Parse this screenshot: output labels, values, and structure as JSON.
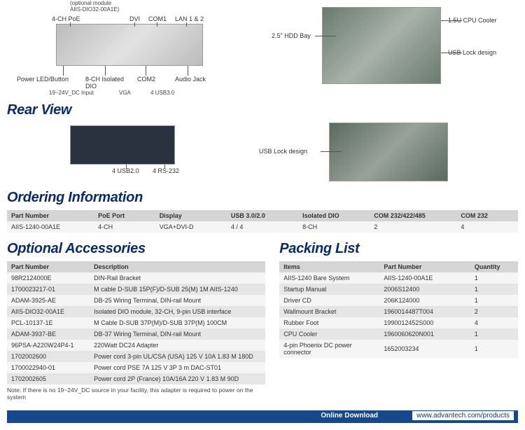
{
  "frontPanel": {
    "labels": {
      "optModule": "(optional module\nAIIS-DIO32-00A1E)",
      "poe": "4-CH PoE",
      "dvi": "DVI",
      "com1": "COM1",
      "lan": "LAN 1 & 2",
      "powerLed": "Power LED/Button",
      "dio": "8-CH Isolated\nDIO",
      "com2": "COM2",
      "audio": "Audio Jack",
      "vdc": "19~24V_DC Input",
      "vga": "VGA",
      "usb3": "4 USB3.0"
    }
  },
  "insidePanel": {
    "labels": {
      "cpuCooler": "1.5U CPU Cooler",
      "hddBay": "2.5\" HDD Bay",
      "usbLock": "USB Lock design"
    }
  },
  "rearView": {
    "title": "Rear View",
    "labels": {
      "usb2": "4 USB2.0",
      "rs232": "4 RS-232",
      "usbLock": "USB Lock design"
    }
  },
  "orderingInfo": {
    "title": "Ordering Information",
    "columns": [
      "Part Number",
      "PoE Port",
      "Display",
      "USB 3.0/2.0",
      "Isolated DIO",
      "COM 232/422/485",
      "COM 232"
    ],
    "rows": [
      [
        "AIIS-1240-00A1E",
        "4-CH",
        "VGA+DVI-D",
        "4 / 4",
        "8-CH",
        "2",
        "4"
      ]
    ]
  },
  "optionalAccessories": {
    "title": "Optional Accessories",
    "columns": [
      "Part Number",
      "Description"
    ],
    "rows": [
      [
        "98R2124000E",
        "DIN-Rail Bracket"
      ],
      [
        "1700023217-01",
        "M cable D-SUB 15P(F)/D-SUB 25(M) 1M AIIS-1240"
      ],
      [
        "ADAM-3925-AE",
        "DB-25 Wiring Terminal, DIN-rail Mount"
      ],
      [
        "AIIS-DIO32-00A1E",
        "Isolated DIO module, 32-CH, 9-pin USB interface"
      ],
      [
        "PCL-10137-1E",
        "M Cable D-SUB 37P(M)/D-SUB 37P(M) 100CM"
      ],
      [
        "ADAM-3937-BE",
        "DB-37 Wiring Terminal, DIN-rail Mount"
      ],
      [
        "96PSA-A220W24P4-1",
        "220Watt DC24 Adapter"
      ],
      [
        "1702002600",
        "Power cord 3-pin UL/CSA (USA) 125 V 10A 1.83 M 180D"
      ],
      [
        "1700022940-01",
        "Power cord PSE 7A 125 V 3P 3 m DAC-ST01"
      ],
      [
        "1702002605",
        "Power cord 2P (France) 10A/16A 220 V 1.83 M 90D"
      ]
    ],
    "note": "Note: If there is no 19~24V_DC source in your facility, this adapter is required to power on the system"
  },
  "packingList": {
    "title": "Packing List",
    "columns": [
      "Items",
      "Part Number",
      "Quantity"
    ],
    "rows": [
      [
        "AIIS-1240 Bare System",
        "AIIS-1240-00A1E",
        "1"
      ],
      [
        "Startup Manual",
        "2006S12400",
        "1"
      ],
      [
        "Driver CD",
        "206K124000",
        "1"
      ],
      [
        "Wallmount Bracket",
        "1960014487T004",
        "2"
      ],
      [
        "Rubber Foot",
        "1990012452S000",
        "4"
      ],
      [
        "CPU Cooler",
        "1960060620N001",
        "1"
      ],
      [
        "4-pin Phoenix DC power connector",
        "1652003234",
        "1"
      ]
    ]
  },
  "footer": {
    "onlineDownload": "Online Download",
    "url": "www.advantech.com/products"
  }
}
